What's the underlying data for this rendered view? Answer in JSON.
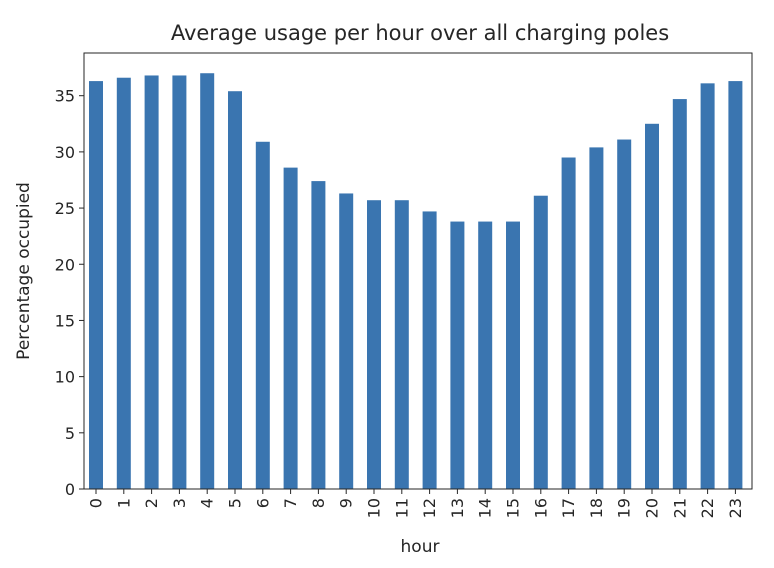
{
  "chart_data": {
    "type": "bar",
    "title": "Average usage per hour over all charging poles",
    "xlabel": "hour",
    "ylabel": "Percentage occupied",
    "categories": [
      "0",
      "1",
      "2",
      "3",
      "4",
      "5",
      "6",
      "7",
      "8",
      "9",
      "10",
      "11",
      "12",
      "13",
      "14",
      "15",
      "16",
      "17",
      "18",
      "19",
      "20",
      "21",
      "22",
      "23"
    ],
    "values": [
      36.3,
      36.6,
      36.8,
      36.8,
      37.0,
      35.4,
      30.9,
      28.6,
      27.4,
      26.3,
      25.7,
      25.7,
      24.7,
      23.8,
      23.8,
      23.8,
      26.1,
      29.5,
      30.4,
      31.1,
      32.5,
      34.7,
      36.1,
      36.3
    ],
    "ylim": [
      0,
      38.8
    ],
    "yticks": [
      0,
      5,
      10,
      15,
      20,
      25,
      30,
      35
    ],
    "bar_color": "#3a75b0",
    "grid": false,
    "legend": "none"
  }
}
